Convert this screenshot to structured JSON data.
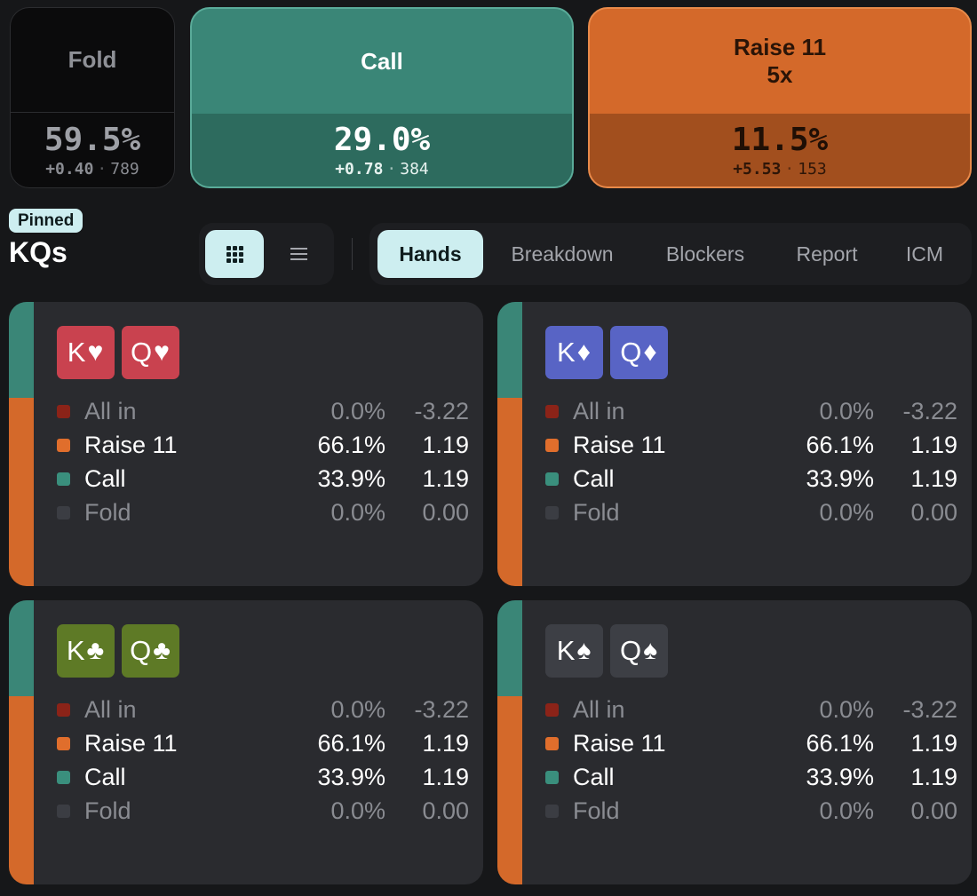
{
  "actions": {
    "fold": {
      "label": "Fold",
      "percent": "59.5%",
      "ev": "+0.40",
      "combos": "789"
    },
    "call": {
      "label": "Call",
      "percent": "29.0%",
      "ev": "+0.78",
      "combos": "384"
    },
    "raise": {
      "label": "Raise 11",
      "label2": "5x",
      "percent": "11.5%",
      "ev": "+5.53",
      "combos": "153"
    }
  },
  "header": {
    "pinned": "Pinned",
    "hand": "KQs"
  },
  "view_toggle": {
    "grid_icon": "grid-icon",
    "list_icon": "list-icon",
    "selected": "grid"
  },
  "tabs": [
    "Hands",
    "Breakdown",
    "Blockers",
    "Report",
    "ICM"
  ],
  "active_tab": "Hands",
  "colors": {
    "fold": "#0b0b0c",
    "call": "#3a8677",
    "raise": "#d4692a",
    "allin": "#8b2318",
    "accent": "#cdeef0",
    "hearts": "#c9424f",
    "diamonds": "#5864c5",
    "clubs": "#5e7a26",
    "spades": "#3d3f45"
  },
  "combos": [
    {
      "suit": "hearts",
      "cards": [
        {
          "rank": "K",
          "suit": "♥"
        },
        {
          "rank": "Q",
          "suit": "♥"
        }
      ],
      "frequency_bar": {
        "call": 0.339,
        "raise": 0.661
      },
      "rows": [
        {
          "action": "All in",
          "freq": "0.0%",
          "ev": "-3.22"
        },
        {
          "action": "Raise 11",
          "freq": "66.1%",
          "ev": "1.19"
        },
        {
          "action": "Call",
          "freq": "33.9%",
          "ev": "1.19"
        },
        {
          "action": "Fold",
          "freq": "0.0%",
          "ev": "0.00"
        }
      ]
    },
    {
      "suit": "diamonds",
      "cards": [
        {
          "rank": "K",
          "suit": "♦"
        },
        {
          "rank": "Q",
          "suit": "♦"
        }
      ],
      "frequency_bar": {
        "call": 0.339,
        "raise": 0.661
      },
      "rows": [
        {
          "action": "All in",
          "freq": "0.0%",
          "ev": "-3.22"
        },
        {
          "action": "Raise 11",
          "freq": "66.1%",
          "ev": "1.19"
        },
        {
          "action": "Call",
          "freq": "33.9%",
          "ev": "1.19"
        },
        {
          "action": "Fold",
          "freq": "0.0%",
          "ev": "0.00"
        }
      ]
    },
    {
      "suit": "clubs",
      "cards": [
        {
          "rank": "K",
          "suit": "♣"
        },
        {
          "rank": "Q",
          "suit": "♣"
        }
      ],
      "frequency_bar": {
        "call": 0.339,
        "raise": 0.661
      },
      "rows": [
        {
          "action": "All in",
          "freq": "0.0%",
          "ev": "-3.22"
        },
        {
          "action": "Raise 11",
          "freq": "66.1%",
          "ev": "1.19"
        },
        {
          "action": "Call",
          "freq": "33.9%",
          "ev": "1.19"
        },
        {
          "action": "Fold",
          "freq": "0.0%",
          "ev": "0.00"
        }
      ]
    },
    {
      "suit": "spades",
      "cards": [
        {
          "rank": "K",
          "suit": "♠"
        },
        {
          "rank": "Q",
          "suit": "♠"
        }
      ],
      "frequency_bar": {
        "call": 0.339,
        "raise": 0.661
      },
      "rows": [
        {
          "action": "All in",
          "freq": "0.0%",
          "ev": "-3.22"
        },
        {
          "action": "Raise 11",
          "freq": "66.1%",
          "ev": "1.19"
        },
        {
          "action": "Call",
          "freq": "33.9%",
          "ev": "1.19"
        },
        {
          "action": "Fold",
          "freq": "0.0%",
          "ev": "0.00"
        }
      ]
    }
  ]
}
